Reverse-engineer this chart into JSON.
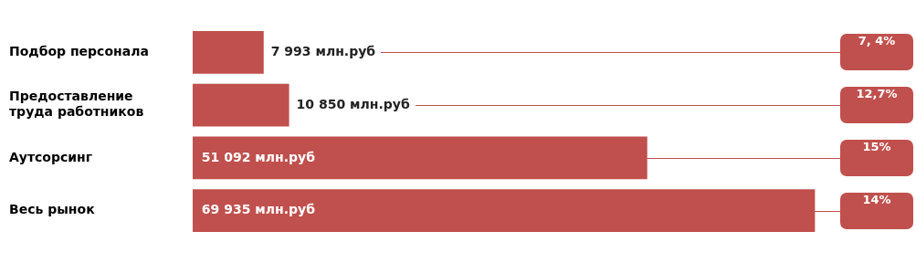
{
  "chart_data": {
    "type": "bar",
    "orientation": "horizontal",
    "categories": [
      "Подбор персонала",
      "Предоставление\nтруда работников",
      "Аутсорсинг",
      "Весь рынок"
    ],
    "values": [
      7993,
      10850,
      51092,
      69935
    ],
    "value_labels": [
      "7 993 млн.руб",
      "10 850 млн.руб",
      "51 092 млн.руб",
      "69 935 млн.руб"
    ],
    "color": "#c0504d",
    "grid": false,
    "legend": false,
    "annotations": [
      "7, 4%",
      "12,7%",
      "15%",
      "14%"
    ]
  }
}
